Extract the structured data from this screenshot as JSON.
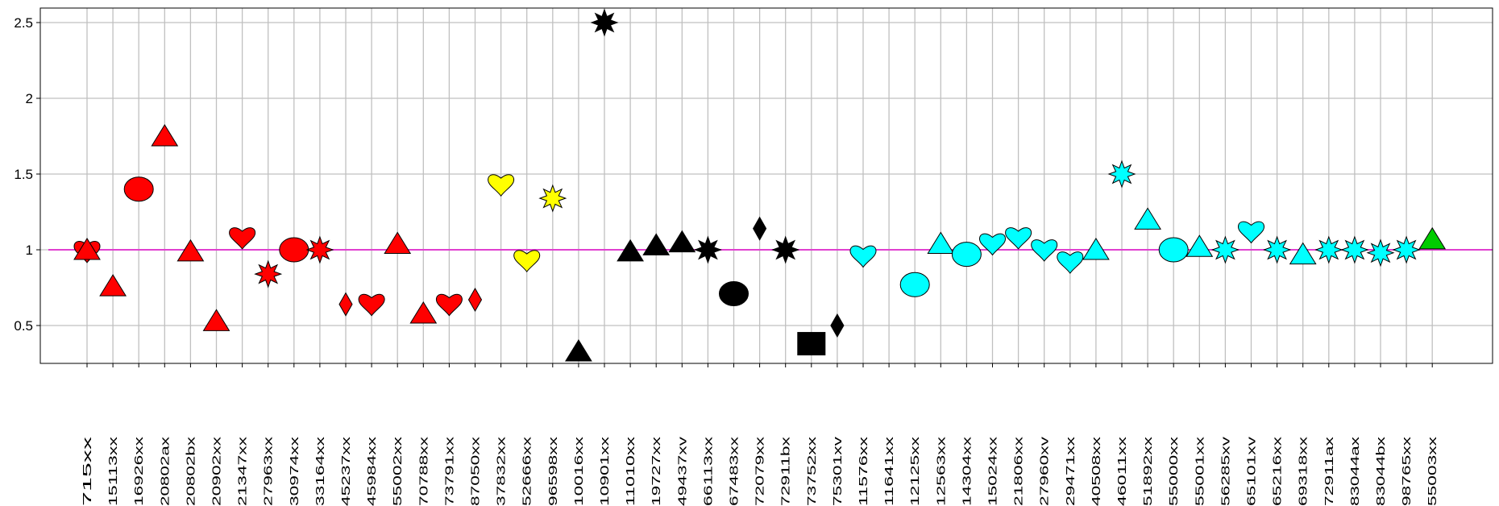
{
  "chart_data": {
    "type": "scatter",
    "title": "",
    "xlabel": "",
    "ylabel": "",
    "ylim": [
      0.25,
      2.6
    ],
    "yticks": [
      0.5,
      1,
      1.5,
      2,
      2.5
    ],
    "ytick_labels": [
      "0.5",
      "1",
      "1.5",
      "2",
      "2.5"
    ],
    "grid": true,
    "reference_line": {
      "y": 1.0,
      "color": "#e040d0"
    },
    "categories": [
      "715xx",
      "15113xx",
      "16926xx",
      "20802ax",
      "20802bx",
      "20902xx",
      "21347xx",
      "27963xx",
      "30974xx",
      "33164xx",
      "45237xx",
      "45984xx",
      "55002xx",
      "70788xx",
      "73791xx",
      "87050xx",
      "37832xx",
      "52666xx",
      "96598xx",
      "10016xx",
      "10901xx",
      "11010xx",
      "19727xx",
      "49437xv",
      "66113xx",
      "67483xx",
      "72079xx",
      "72911bx",
      "73752xx",
      "75301xv",
      "11576xx",
      "11641xx",
      "12125xx",
      "12563xx",
      "14304xx",
      "15024xx",
      "21806xx",
      "27960xv",
      "29471xx",
      "40508xx",
      "46011xx",
      "51892xx",
      "55000xx",
      "55001xx",
      "56285xv",
      "65101xv",
      "65216xx",
      "69318xx",
      "72911ax",
      "83044ax",
      "83044bx",
      "98765xx",
      "55003xx"
    ],
    "points": [
      {
        "x": "715xx",
        "y": 0.99,
        "shape": "heart",
        "color": "#ff0000"
      },
      {
        "x": "715xx",
        "y": 1.0,
        "shape": "triangle",
        "color": "#ff0000"
      },
      {
        "x": "15113xx",
        "y": 0.76,
        "shape": "triangle",
        "color": "#ff0000"
      },
      {
        "x": "16926xx",
        "y": 1.4,
        "shape": "circle",
        "color": "#ff0000"
      },
      {
        "x": "20802ax",
        "y": 1.75,
        "shape": "triangle",
        "color": "#ff0000"
      },
      {
        "x": "20802bx",
        "y": 0.99,
        "shape": "triangle",
        "color": "#ff0000"
      },
      {
        "x": "20902xx",
        "y": 0.53,
        "shape": "triangle",
        "color": "#ff0000"
      },
      {
        "x": "21347xx",
        "y": 1.08,
        "shape": "heart",
        "color": "#ff0000"
      },
      {
        "x": "27963xx",
        "y": 0.84,
        "shape": "star",
        "color": "#ff0000"
      },
      {
        "x": "30974xx",
        "y": 1.0,
        "shape": "circle",
        "color": "#ff0000"
      },
      {
        "x": "33164xx",
        "y": 1.0,
        "shape": "star",
        "color": "#ff0000"
      },
      {
        "x": "45237xx",
        "y": 0.64,
        "shape": "diamond",
        "color": "#ff0000"
      },
      {
        "x": "45984xx",
        "y": 0.64,
        "shape": "heart",
        "color": "#ff0000"
      },
      {
        "x": "55002xx",
        "y": 1.04,
        "shape": "triangle",
        "color": "#ff0000"
      },
      {
        "x": "70788xx",
        "y": 0.58,
        "shape": "triangle",
        "color": "#ff0000"
      },
      {
        "x": "73791xx",
        "y": 0.64,
        "shape": "heart",
        "color": "#ff0000"
      },
      {
        "x": "87050xx",
        "y": 0.67,
        "shape": "diamond",
        "color": "#ff0000"
      },
      {
        "x": "37832xx",
        "y": 1.43,
        "shape": "heart",
        "color": "#ffff00"
      },
      {
        "x": "52666xx",
        "y": 0.93,
        "shape": "heart",
        "color": "#ffff00"
      },
      {
        "x": "96598xx",
        "y": 1.34,
        "shape": "star",
        "color": "#ffff00"
      },
      {
        "x": "10016xx",
        "y": 0.33,
        "shape": "triangle",
        "color": "#000000"
      },
      {
        "x": "10901xx",
        "y": 2.5,
        "shape": "star",
        "color": "#000000"
      },
      {
        "x": "11010xx",
        "y": 0.99,
        "shape": "triangle",
        "color": "#000000"
      },
      {
        "x": "19727xx",
        "y": 1.03,
        "shape": "triangle",
        "color": "#000000"
      },
      {
        "x": "49437xv",
        "y": 1.05,
        "shape": "triangle",
        "color": "#000000"
      },
      {
        "x": "66113xx",
        "y": 1.0,
        "shape": "star",
        "color": "#000000"
      },
      {
        "x": "67483xx",
        "y": 0.71,
        "shape": "circle",
        "color": "#000000"
      },
      {
        "x": "72079xx",
        "y": 1.14,
        "shape": "diamond",
        "color": "#000000"
      },
      {
        "x": "72911bx",
        "y": 1.0,
        "shape": "star",
        "color": "#000000"
      },
      {
        "x": "73752xx",
        "y": 0.38,
        "shape": "square",
        "color": "#000000"
      },
      {
        "x": "75301xv",
        "y": 0.5,
        "shape": "diamond",
        "color": "#000000"
      },
      {
        "x": "11576xx",
        "y": 0.96,
        "shape": "heart",
        "color": "#00ffff"
      },
      {
        "x": "12125xx",
        "y": 0.77,
        "shape": "circle",
        "color": "#00ffff"
      },
      {
        "x": "12563xx",
        "y": 1.04,
        "shape": "triangle",
        "color": "#00ffff"
      },
      {
        "x": "14304xx",
        "y": 0.97,
        "shape": "circle",
        "color": "#00ffff"
      },
      {
        "x": "15024xx",
        "y": 1.04,
        "shape": "heart",
        "color": "#00ffff"
      },
      {
        "x": "21806xx",
        "y": 1.08,
        "shape": "heart",
        "color": "#00ffff"
      },
      {
        "x": "27960xv",
        "y": 1.0,
        "shape": "heart",
        "color": "#00ffff"
      },
      {
        "x": "29471xx",
        "y": 0.92,
        "shape": "heart",
        "color": "#00ffff"
      },
      {
        "x": "40508xx",
        "y": 1.0,
        "shape": "triangle",
        "color": "#00ffff"
      },
      {
        "x": "46011xx",
        "y": 1.5,
        "shape": "star",
        "color": "#00ffff"
      },
      {
        "x": "51892xx",
        "y": 1.2,
        "shape": "triangle",
        "color": "#00ffff"
      },
      {
        "x": "55000xx",
        "y": 1.0,
        "shape": "circle",
        "color": "#00ffff"
      },
      {
        "x": "55001xx",
        "y": 1.02,
        "shape": "triangle",
        "color": "#00ffff"
      },
      {
        "x": "56285xv",
        "y": 1.0,
        "shape": "star",
        "color": "#00ffff"
      },
      {
        "x": "65101xv",
        "y": 1.12,
        "shape": "heart",
        "color": "#00ffff"
      },
      {
        "x": "65216xx",
        "y": 1.0,
        "shape": "star",
        "color": "#00ffff"
      },
      {
        "x": "69318xx",
        "y": 0.97,
        "shape": "triangle",
        "color": "#00ffff"
      },
      {
        "x": "72911ax",
        "y": 1.0,
        "shape": "star",
        "color": "#00ffff"
      },
      {
        "x": "83044ax",
        "y": 1.0,
        "shape": "star",
        "color": "#00ffff"
      },
      {
        "x": "83044bx",
        "y": 0.98,
        "shape": "star",
        "color": "#00ffff"
      },
      {
        "x": "98765xx",
        "y": 1.0,
        "shape": "star",
        "color": "#00ffff"
      },
      {
        "x": "55003xx",
        "y": 1.07,
        "shape": "triangle",
        "color": "#00cc00"
      }
    ]
  }
}
